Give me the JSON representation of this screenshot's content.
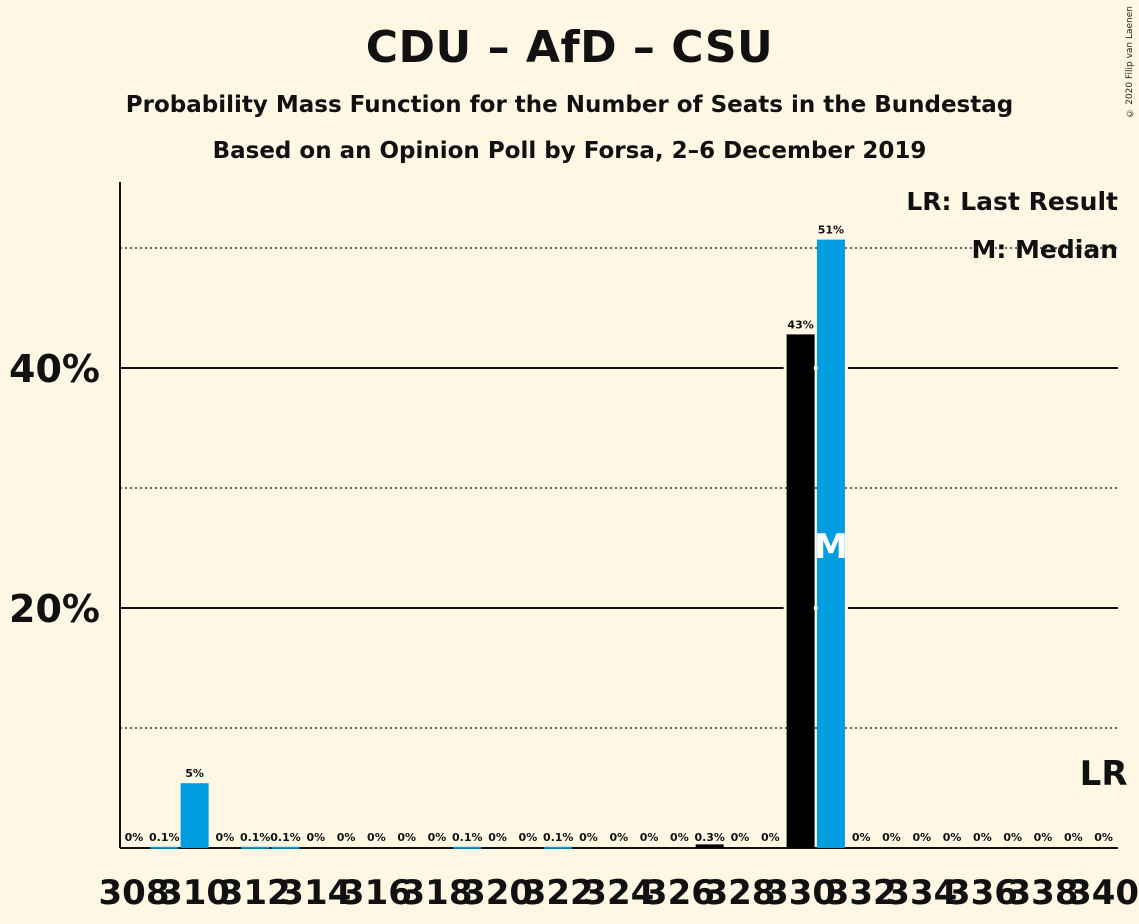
{
  "title": "CDU – AfD – CSU",
  "subtitle": "Probability Mass Function for the Number of Seats in the Bundestag",
  "subtitle2": "Based on an Opinion Poll by Forsa, 2–6 December 2019",
  "copyright": "© 2020 Filip van Laenen",
  "legend": {
    "last_result": "LR: Last Result",
    "median": "M: Median"
  },
  "markers": {
    "median": "M",
    "last_result": "LR"
  },
  "colors": {
    "background": "#fdf7e4",
    "blue": "#009de0",
    "black": "#000000"
  },
  "chart_data": {
    "type": "bar",
    "x": [
      308,
      309,
      310,
      311,
      312,
      313,
      314,
      315,
      316,
      317,
      318,
      319,
      320,
      321,
      322,
      323,
      324,
      325,
      326,
      327,
      328,
      329,
      330,
      331,
      332,
      333,
      334,
      335,
      336,
      337,
      338,
      339,
      340
    ],
    "values": [
      0,
      0.1,
      5.4,
      0,
      0.1,
      0.1,
      0,
      0,
      0,
      0,
      0,
      0.1,
      0,
      0,
      0.1,
      0,
      0,
      0,
      0,
      0.3,
      0,
      0,
      42.8,
      50.7,
      0,
      0,
      0,
      0,
      0,
      0,
      0,
      0,
      0
    ],
    "value_labels": [
      "0%",
      "0.1%",
      "5%",
      "0%",
      "0.1%",
      "0.1%",
      "0%",
      "0%",
      "0%",
      "0%",
      "0%",
      "0.1%",
      "0%",
      "0%",
      "0.1%",
      "0%",
      "0%",
      "0%",
      "0%",
      "0.3%",
      "0%",
      "0%",
      "43%",
      "51%",
      "0%",
      "0%",
      "0%",
      "0%",
      "0%",
      "0%",
      "0%",
      "0%",
      "0%"
    ],
    "bar_colors": [
      "blue",
      "blue",
      "blue",
      "blue",
      "blue",
      "blue",
      "blue",
      "blue",
      "blue",
      "blue",
      "blue",
      "blue",
      "blue",
      "blue",
      "blue",
      "blue",
      "blue",
      "blue",
      "blue",
      "black",
      "blue",
      "blue",
      "black",
      "blue",
      "blue",
      "blue",
      "blue",
      "blue",
      "blue",
      "blue",
      "blue",
      "blue",
      "blue"
    ],
    "x_tick_labels": [
      "308",
      "310",
      "312",
      "314",
      "316",
      "318",
      "320",
      "322",
      "324",
      "326",
      "328",
      "330",
      "332",
      "334",
      "336",
      "338",
      "340"
    ],
    "y_ticks": [
      20,
      40
    ],
    "y_tick_labels": [
      "20%",
      "40%"
    ],
    "y_minor_gridlines": [
      10,
      30,
      50
    ],
    "ylim": [
      0,
      55
    ],
    "median_seat": 331,
    "last_result_seat": 340
  }
}
